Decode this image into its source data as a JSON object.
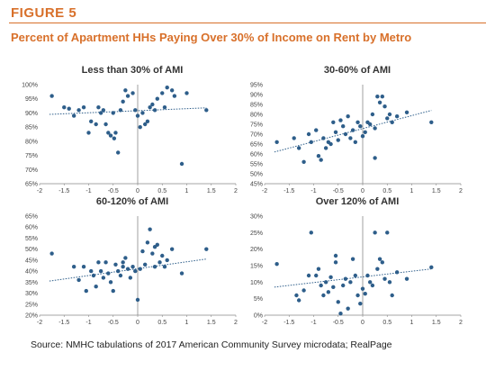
{
  "figure_label": "FIGURE 5",
  "title": "Percent of Apartment HHs Paying Over 30% of Income on Rent by Metro",
  "source": "Source: NMHC tabulations of 2017 American Community Survey microdata; RealPage",
  "colors": {
    "accent": "#d8702a",
    "points": "#2e5e8a",
    "trend": "#2e5e8a",
    "axis": "#888888"
  },
  "chart_data": [
    {
      "type": "scatter",
      "title": "Less than 30% of AMI",
      "xlim": [
        -2,
        2
      ],
      "ylim": [
        65,
        100
      ],
      "xticks": [
        "-2",
        "-1.5",
        "-1",
        "-0.5",
        "0",
        "0.5",
        "1",
        "1.5",
        "2"
      ],
      "yticks": [
        "65%",
        "70%",
        "75%",
        "80%",
        "85%",
        "90%",
        "95%",
        "100%"
      ],
      "ytick_values": [
        65,
        70,
        75,
        80,
        85,
        90,
        95,
        100
      ],
      "trend": [
        [
          -1.8,
          89.5
        ],
        [
          1.4,
          91.8
        ]
      ],
      "points": [
        [
          -1.75,
          96.0
        ],
        [
          -1.5,
          92.0
        ],
        [
          -1.4,
          91.5
        ],
        [
          -1.3,
          89.0
        ],
        [
          -1.2,
          91.0
        ],
        [
          -1.1,
          92.0
        ],
        [
          -1.0,
          83.0
        ],
        [
          -0.95,
          87.0
        ],
        [
          -0.85,
          86.0
        ],
        [
          -0.8,
          92.0
        ],
        [
          -0.75,
          90.0
        ],
        [
          -0.7,
          91.0
        ],
        [
          -0.65,
          86.0
        ],
        [
          -0.6,
          83.0
        ],
        [
          -0.55,
          82.0
        ],
        [
          -0.5,
          90.0
        ],
        [
          -0.48,
          81.0
        ],
        [
          -0.45,
          83.0
        ],
        [
          -0.4,
          76.0
        ],
        [
          -0.35,
          91.0
        ],
        [
          -0.3,
          94.0
        ],
        [
          -0.25,
          98.0
        ],
        [
          -0.2,
          96.0
        ],
        [
          -0.1,
          97.0
        ],
        [
          -0.05,
          91.0
        ],
        [
          0.0,
          89.0
        ],
        [
          0.05,
          85.0
        ],
        [
          0.1,
          90.0
        ],
        [
          0.15,
          86.0
        ],
        [
          0.2,
          87.0
        ],
        [
          0.25,
          92.0
        ],
        [
          0.3,
          93.0
        ],
        [
          0.35,
          91.0
        ],
        [
          0.4,
          95.0
        ],
        [
          0.5,
          97.0
        ],
        [
          0.55,
          92.0
        ],
        [
          0.6,
          99.0
        ],
        [
          0.7,
          98.0
        ],
        [
          0.75,
          96.0
        ],
        [
          0.9,
          72.0
        ],
        [
          1.0,
          97.0
        ],
        [
          1.4,
          91.0
        ]
      ]
    },
    {
      "type": "scatter",
      "title": "30-60% of AMI",
      "xlim": [
        -2,
        2
      ],
      "ylim": [
        45,
        95
      ],
      "xticks": [
        "-2",
        "-1.5",
        "-1",
        "-0.5",
        "0",
        "0.5",
        "1",
        "1.5",
        "2"
      ],
      "yticks": [
        "45%",
        "50%",
        "55%",
        "60%",
        "65%",
        "70%",
        "75%",
        "80%",
        "85%",
        "90%",
        "95%"
      ],
      "ytick_values": [
        45,
        50,
        55,
        60,
        65,
        70,
        75,
        80,
        85,
        90,
        95
      ],
      "trend": [
        [
          -1.8,
          61.0
        ],
        [
          1.4,
          82.0
        ]
      ],
      "points": [
        [
          -1.75,
          66.0
        ],
        [
          -1.4,
          68.0
        ],
        [
          -1.3,
          63.0
        ],
        [
          -1.2,
          56.0
        ],
        [
          -1.1,
          70.0
        ],
        [
          -1.05,
          66.0
        ],
        [
          -0.95,
          72.0
        ],
        [
          -0.9,
          59.0
        ],
        [
          -0.85,
          57.0
        ],
        [
          -0.8,
          68.0
        ],
        [
          -0.75,
          63.0
        ],
        [
          -0.7,
          66.0
        ],
        [
          -0.65,
          65.0
        ],
        [
          -0.6,
          76.0
        ],
        [
          -0.55,
          71.0
        ],
        [
          -0.5,
          67.0
        ],
        [
          -0.45,
          77.0
        ],
        [
          -0.4,
          74.0
        ],
        [
          -0.35,
          70.0
        ],
        [
          -0.3,
          79.0
        ],
        [
          -0.25,
          68.0
        ],
        [
          -0.2,
          72.0
        ],
        [
          -0.15,
          66.0
        ],
        [
          -0.1,
          76.0
        ],
        [
          -0.05,
          74.0
        ],
        [
          0.0,
          69.0
        ],
        [
          0.05,
          71.0
        ],
        [
          0.1,
          76.0
        ],
        [
          0.15,
          75.0
        ],
        [
          0.2,
          80.0
        ],
        [
          0.25,
          73.0
        ],
        [
          0.3,
          89.0
        ],
        [
          0.35,
          86.0
        ],
        [
          0.4,
          89.0
        ],
        [
          0.45,
          84.0
        ],
        [
          0.5,
          78.0
        ],
        [
          0.55,
          80.0
        ],
        [
          0.6,
          76.0
        ],
        [
          0.7,
          79.0
        ],
        [
          0.9,
          81.0
        ],
        [
          1.4,
          76.0
        ],
        [
          0.25,
          58.0
        ]
      ]
    },
    {
      "type": "scatter",
      "title": "60-120% of AMI",
      "xlim": [
        -2,
        2
      ],
      "ylim": [
        20,
        65
      ],
      "xticks": [
        "-2",
        "-1.5",
        "-1",
        "-0.5",
        "0",
        "0.5",
        "1",
        "1.5",
        "2"
      ],
      "yticks": [
        "20%",
        "25%",
        "30%",
        "35%",
        "40%",
        "45%",
        "50%",
        "55%",
        "60%",
        "65%"
      ],
      "ytick_values": [
        20,
        25,
        30,
        35,
        40,
        45,
        50,
        55,
        60,
        65
      ],
      "trend": [
        [
          -1.8,
          35.5
        ],
        [
          1.4,
          45.5
        ]
      ],
      "points": [
        [
          -1.75,
          48.0
        ],
        [
          -1.3,
          42.0
        ],
        [
          -1.2,
          36.0
        ],
        [
          -1.1,
          42.0
        ],
        [
          -1.05,
          31.0
        ],
        [
          -0.95,
          40.0
        ],
        [
          -0.9,
          38.0
        ],
        [
          -0.85,
          33.0
        ],
        [
          -0.8,
          44.0
        ],
        [
          -0.75,
          40.0
        ],
        [
          -0.7,
          37.0
        ],
        [
          -0.65,
          44.0
        ],
        [
          -0.6,
          39.0
        ],
        [
          -0.55,
          35.0
        ],
        [
          -0.5,
          31.0
        ],
        [
          -0.45,
          43.0
        ],
        [
          -0.4,
          40.0
        ],
        [
          -0.35,
          38.0
        ],
        [
          -0.3,
          42.0
        ],
        [
          -0.25,
          46.0
        ],
        [
          -0.2,
          41.0
        ],
        [
          -0.15,
          37.0
        ],
        [
          -0.1,
          42.0
        ],
        [
          -0.05,
          40.0
        ],
        [
          0.0,
          27.0
        ],
        [
          0.05,
          41.0
        ],
        [
          0.1,
          49.0
        ],
        [
          0.15,
          43.0
        ],
        [
          0.2,
          53.0
        ],
        [
          0.25,
          59.0
        ],
        [
          0.3,
          48.0
        ],
        [
          0.35,
          51.0
        ],
        [
          0.4,
          52.0
        ],
        [
          0.45,
          44.0
        ],
        [
          0.5,
          47.0
        ],
        [
          0.55,
          42.0
        ],
        [
          0.6,
          45.0
        ],
        [
          0.7,
          50.0
        ],
        [
          0.9,
          39.0
        ],
        [
          1.4,
          50.0
        ],
        [
          0.35,
          42.0
        ],
        [
          -0.3,
          44.0
        ]
      ]
    },
    {
      "type": "scatter",
      "title": "Over 120% of AMI",
      "xlim": [
        -2,
        2
      ],
      "ylim": [
        0,
        30
      ],
      "xticks": [
        "-2",
        "-1.5",
        "-1",
        "-0.5",
        "0",
        "0.5",
        "1",
        "1.5",
        "2"
      ],
      "yticks": [
        "0%",
        "5%",
        "10%",
        "15%",
        "20%",
        "25%",
        "30%"
      ],
      "ytick_values": [
        0,
        5,
        10,
        15,
        20,
        25,
        30
      ],
      "trend": [
        [
          -1.8,
          8.5
        ],
        [
          1.4,
          14.0
        ]
      ],
      "points": [
        [
          -1.75,
          15.5
        ],
        [
          -1.35,
          6.0
        ],
        [
          -1.3,
          4.5
        ],
        [
          -1.2,
          7.5
        ],
        [
          -1.1,
          12.0
        ],
        [
          -1.05,
          25.0
        ],
        [
          -0.95,
          12.0
        ],
        [
          -0.9,
          14.0
        ],
        [
          -0.85,
          9.0
        ],
        [
          -0.8,
          6.0
        ],
        [
          -0.75,
          10.0
        ],
        [
          -0.7,
          7.0
        ],
        [
          -0.65,
          11.5
        ],
        [
          -0.6,
          8.5
        ],
        [
          -0.55,
          16.0
        ],
        [
          -0.5,
          4.0
        ],
        [
          -0.45,
          0.5
        ],
        [
          -0.4,
          9.0
        ],
        [
          -0.35,
          11.0
        ],
        [
          -0.3,
          2.0
        ],
        [
          -0.25,
          10.0
        ],
        [
          -0.2,
          17.0
        ],
        [
          -0.15,
          12.0
        ],
        [
          -0.1,
          6.0
        ],
        [
          -0.05,
          3.5
        ],
        [
          0.0,
          8.0
        ],
        [
          0.05,
          6.5
        ],
        [
          0.1,
          12.0
        ],
        [
          0.15,
          10.0
        ],
        [
          0.2,
          9.0
        ],
        [
          0.25,
          25.0
        ],
        [
          0.3,
          14.0
        ],
        [
          0.35,
          17.0
        ],
        [
          0.4,
          16.0
        ],
        [
          0.45,
          11.0
        ],
        [
          0.5,
          25.0
        ],
        [
          0.55,
          10.0
        ],
        [
          0.6,
          6.0
        ],
        [
          0.7,
          13.0
        ],
        [
          0.9,
          11.0
        ],
        [
          1.4,
          14.5
        ],
        [
          -0.55,
          18.0
        ]
      ]
    }
  ]
}
